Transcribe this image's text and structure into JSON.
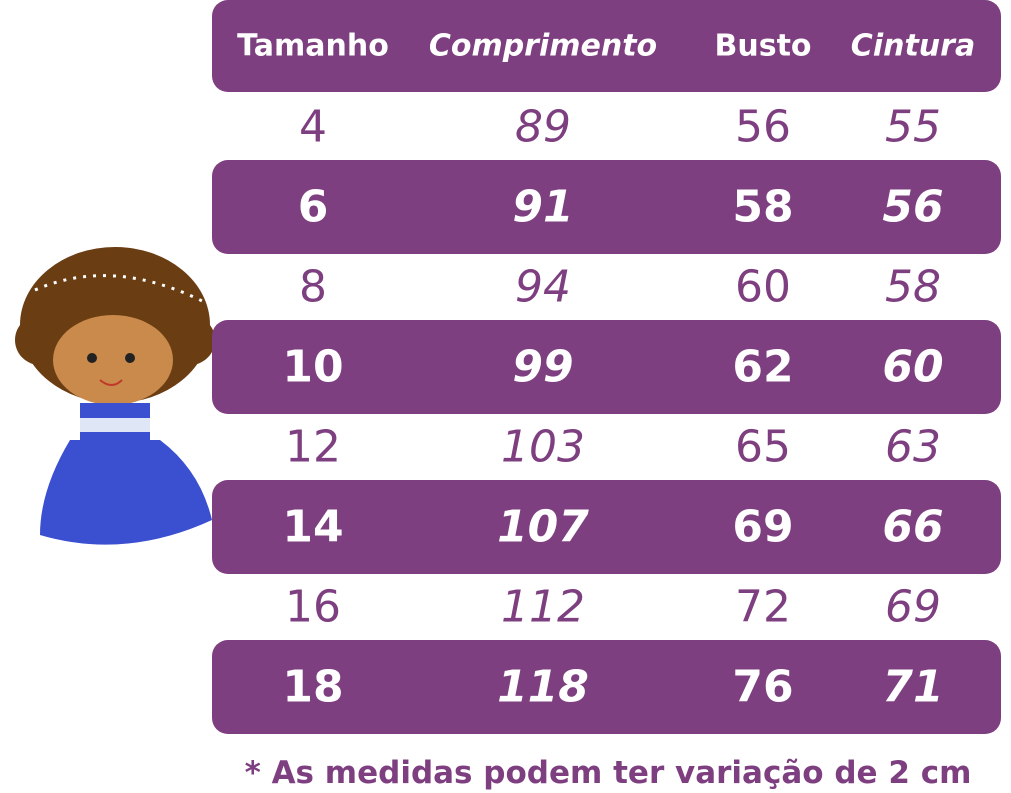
{
  "header": {
    "columns": [
      "Tamanho",
      "Comprimento",
      "Busto",
      "Cintura"
    ]
  },
  "table": {
    "rows": [
      [
        "4",
        "89",
        "56",
        "55"
      ],
      [
        "6",
        "91",
        "58",
        "56"
      ],
      [
        "8",
        "94",
        "60",
        "58"
      ],
      [
        "10",
        "99",
        "62",
        "60"
      ],
      [
        "12",
        "103",
        "65",
        "63"
      ],
      [
        "14",
        "107",
        "69",
        "66"
      ],
      [
        "16",
        "112",
        "72",
        "69"
      ],
      [
        "18",
        "118",
        "76",
        "71"
      ]
    ]
  },
  "footnote": "* As medidas podem ter variação de 2 cm"
}
